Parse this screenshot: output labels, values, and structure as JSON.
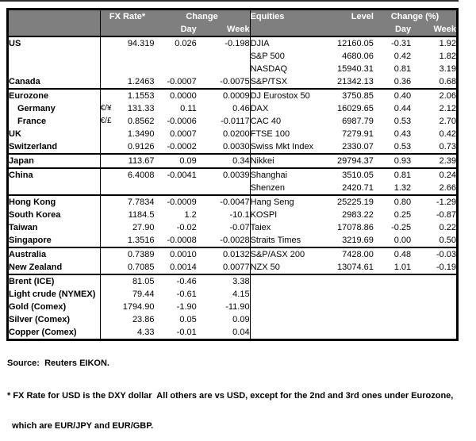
{
  "colors": {
    "header_bg": "#7f7f7f",
    "header_text": "#ffffff",
    "border": "#000000"
  },
  "table": {
    "header": {
      "fx_rate": "FX Rate*",
      "change": "Change",
      "day_fx": "Day",
      "week_fx": "Week",
      "equities": "Equities",
      "level": "Level",
      "change_pct": "Change (%)",
      "day_eq": "Day",
      "week_eq": "Week"
    },
    "rows": [
      {
        "label": "US",
        "indent": false,
        "group_start": false,
        "pair": "",
        "fx": "94.319",
        "fx_day": "0.026",
        "fx_week": "-0.198",
        "equity": "DJIA",
        "level": "12160.05",
        "eq_day": "-0.31",
        "eq_week": "1.92"
      },
      {
        "label": "",
        "indent": false,
        "group_start": false,
        "pair": "",
        "fx": "",
        "fx_day": "",
        "fx_week": "",
        "equity": "S&P 500",
        "level": "4680.06",
        "eq_day": "0.42",
        "eq_week": "1.82"
      },
      {
        "label": "",
        "indent": false,
        "group_start": false,
        "pair": "",
        "fx": "",
        "fx_day": "",
        "fx_week": "",
        "equity": "NASDAQ",
        "level": "15940.31",
        "eq_day": "0.81",
        "eq_week": "3.19"
      },
      {
        "label": "Canada",
        "indent": false,
        "group_start": false,
        "pair": "",
        "fx": "1.2463",
        "fx_day": "-0.0007",
        "fx_week": "-0.0075",
        "equity": "S&P/TSX",
        "level": "21342.13",
        "eq_day": "0.36",
        "eq_week": "0.68"
      },
      {
        "label": "Eurozone",
        "indent": false,
        "group_start": true,
        "pair": "",
        "fx": "1.1553",
        "fx_day": "0.0000",
        "fx_week": "0.0009",
        "equity": "DJ Eurostox 50",
        "level": "3750.85",
        "eq_day": "0.40",
        "eq_week": "2.06"
      },
      {
        "label": "Germany",
        "indent": true,
        "group_start": false,
        "pair": "€/¥",
        "fx": "131.33",
        "fx_day": "0.11",
        "fx_week": "0.46",
        "equity": "DAX",
        "level": "16029.65",
        "eq_day": "0.44",
        "eq_week": "2.12"
      },
      {
        "label": "France",
        "indent": true,
        "group_start": false,
        "pair": "€/£",
        "fx": "0.8562",
        "fx_day": "-0.0006",
        "fx_week": "-0.0117",
        "equity": "CAC 40",
        "level": "6987.79",
        "eq_day": "0.53",
        "eq_week": "2.70"
      },
      {
        "label": "UK",
        "indent": false,
        "group_start": false,
        "pair": "",
        "fx": "1.3490",
        "fx_day": "0.0007",
        "fx_week": "0.0200",
        "equity": "FTSE 100",
        "level": "7279.91",
        "eq_day": "0.43",
        "eq_week": "0.42"
      },
      {
        "label": "Switzerland",
        "indent": false,
        "group_start": false,
        "pair": "",
        "fx": "0.9126",
        "fx_day": "-0.0002",
        "fx_week": "0.0030",
        "equity": "Swiss Mkt Index",
        "level": "2330.07",
        "eq_day": "0.53",
        "eq_week": "0.73"
      },
      {
        "label": "Japan",
        "indent": false,
        "group_start": true,
        "pair": "",
        "fx": "113.67",
        "fx_day": "0.09",
        "fx_week": "0.34",
        "equity": "Nikkei",
        "level": "29794.37",
        "eq_day": "0.93",
        "eq_week": "2.39"
      },
      {
        "label": "China",
        "indent": false,
        "group_start": true,
        "pair": "",
        "fx": "6.4008",
        "fx_day": "-0.0041",
        "fx_week": "0.0039",
        "equity": "Shanghai",
        "level": "3510.05",
        "eq_day": "0.81",
        "eq_week": "0.24"
      },
      {
        "label": "",
        "indent": false,
        "group_start": false,
        "pair": "",
        "fx": "",
        "fx_day": "",
        "fx_week": "",
        "equity": "Shenzen",
        "level": "2420.71",
        "eq_day": "1.32",
        "eq_week": "2.66"
      },
      {
        "label": "Hong Kong",
        "indent": false,
        "group_start": true,
        "pair": "",
        "fx": "7.7834",
        "fx_day": "-0.0009",
        "fx_week": "-0.0047",
        "equity": "Hang Seng",
        "level": "25225.19",
        "eq_day": "0.80",
        "eq_week": "-1.29"
      },
      {
        "label": "South Korea",
        "indent": false,
        "group_start": false,
        "pair": "",
        "fx": "1184.5",
        "fx_day": "1.2",
        "fx_week": "-10.1",
        "equity": "KOSPI",
        "level": "2983.22",
        "eq_day": "0.25",
        "eq_week": "-0.87"
      },
      {
        "label": "Taiwan",
        "indent": false,
        "group_start": false,
        "pair": "",
        "fx": "27.90",
        "fx_day": "-0.02",
        "fx_week": "-0.07",
        "equity": "Taiex",
        "level": "17078.86",
        "eq_day": "-0.25",
        "eq_week": "0.22"
      },
      {
        "label": "Singapore",
        "indent": false,
        "group_start": false,
        "pair": "",
        "fx": "1.3516",
        "fx_day": "-0.0008",
        "fx_week": "-0.0028",
        "equity": "Straits Times",
        "level": "3219.69",
        "eq_day": "0.00",
        "eq_week": "0.50"
      },
      {
        "label": "Australia",
        "indent": false,
        "group_start": true,
        "pair": "",
        "fx": "0.7389",
        "fx_day": "0.0010",
        "fx_week": "0.0132",
        "equity": "S&P/ASX 200",
        "level": "7428.00",
        "eq_day": "0.48",
        "eq_week": "-0.03"
      },
      {
        "label": "New Zealand",
        "indent": false,
        "group_start": false,
        "pair": "",
        "fx": "0.7085",
        "fx_day": "0.0014",
        "fx_week": "0.0077",
        "equity": "NZX 50",
        "level": "13074.61",
        "eq_day": "1.01",
        "eq_week": "-0.19"
      },
      {
        "label": "Brent (ICE)",
        "indent": false,
        "group_start": true,
        "pair": "",
        "fx": "81.05",
        "fx_day": "-0.46",
        "fx_week": "3.38",
        "equity": "",
        "level": "",
        "eq_day": "",
        "eq_week": ""
      },
      {
        "label": "Light crude (NYMEX)",
        "indent": false,
        "group_start": false,
        "pair": "",
        "fx": "79.44",
        "fx_day": "-0.61",
        "fx_week": "4.15",
        "equity": "",
        "level": "",
        "eq_day": "",
        "eq_week": ""
      },
      {
        "label": "Gold (Comex)",
        "indent": false,
        "group_start": false,
        "pair": "",
        "fx": "1794.90",
        "fx_day": "-1.90",
        "fx_week": "-11.90",
        "equity": "",
        "level": "",
        "eq_day": "",
        "eq_week": ""
      },
      {
        "label": "Silver (Comex)",
        "indent": false,
        "group_start": false,
        "pair": "",
        "fx": "23.86",
        "fx_day": "0.05",
        "fx_week": "0.09",
        "equity": "",
        "level": "",
        "eq_day": "",
        "eq_week": ""
      },
      {
        "label": "Copper (Comex)",
        "indent": false,
        "group_start": false,
        "pair": "",
        "fx": "4.33",
        "fx_day": "-0.01",
        "fx_week": "0.04",
        "equity": "",
        "level": "",
        "eq_day": "",
        "eq_week": ""
      }
    ]
  },
  "footer": {
    "source": "Source:  Reuters EIKON.",
    "footnote_line1": "* FX Rate for USD is the DXY dollar  All others are vs USD, except for the 2nd and 3rd ones under Eurozone,",
    "footnote_line2": "  which are EUR/JPY and EUR/GBP."
  }
}
